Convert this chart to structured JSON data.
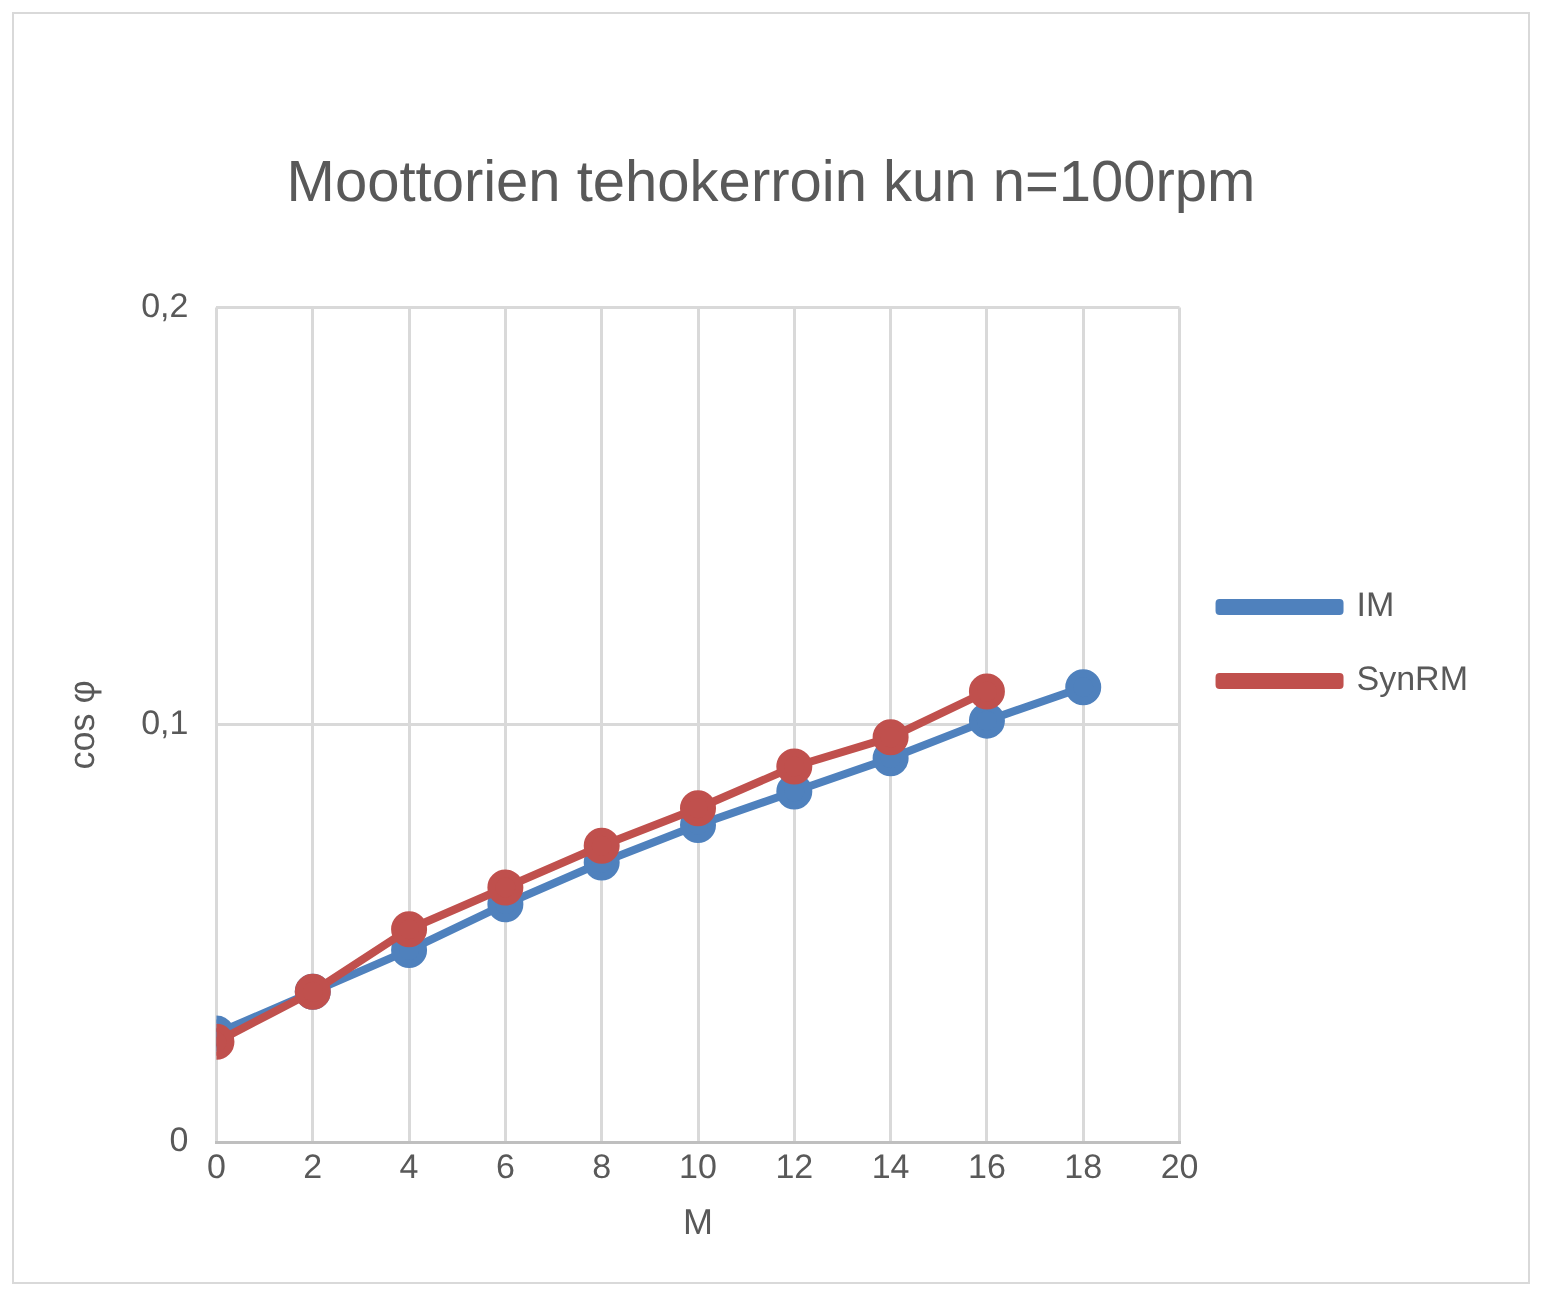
{
  "chart_data": {
    "type": "line",
    "title": "Moottorien tehokerroin kun n=100rpm",
    "xlabel": "M",
    "ylabel": "cos φ",
    "x": [
      0,
      2,
      4,
      6,
      8,
      10,
      12,
      14,
      16,
      18
    ],
    "series": [
      {
        "name": "IM",
        "color": "#4f81bd",
        "values": [
          0.026,
          0.036,
          0.046,
          0.057,
          0.067,
          0.076,
          0.084,
          0.092,
          0.101,
          0.109
        ]
      },
      {
        "name": "SynRM",
        "color": "#c0504d",
        "values": [
          0.024,
          0.036,
          0.051,
          0.061,
          0.071,
          0.08,
          0.09,
          0.097,
          0.108,
          null
        ]
      }
    ],
    "xlim": [
      0,
      20
    ],
    "xticks": [
      0,
      2,
      4,
      6,
      8,
      10,
      12,
      14,
      16,
      18,
      20
    ],
    "ylim": [
      0,
      0.2
    ],
    "yticks": [
      0,
      {
        "value": 0.1,
        "label": "0,1"
      },
      {
        "value": 0.2,
        "label": "0,2"
      }
    ],
    "grid": true,
    "legend": "right",
    "marker": "circle",
    "line_style": "solid"
  }
}
